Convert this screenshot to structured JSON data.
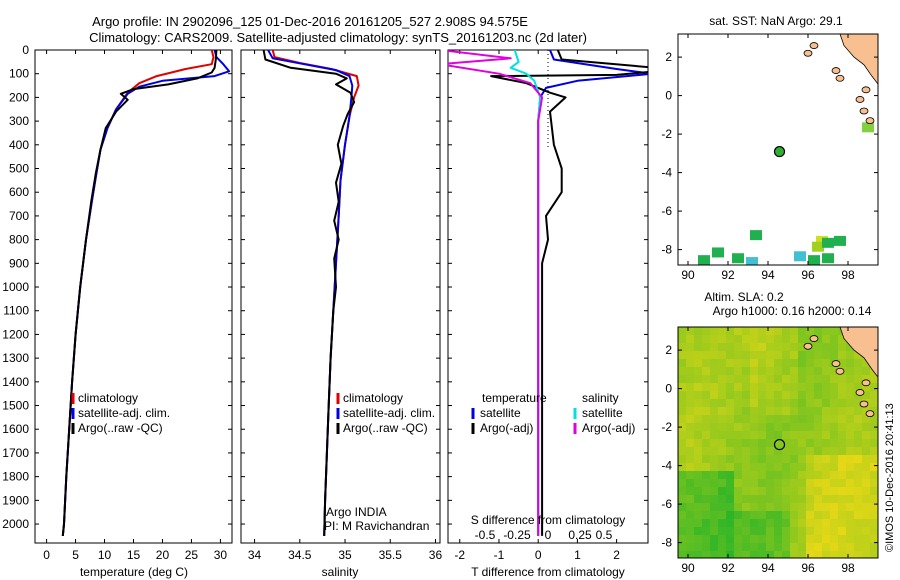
{
  "title_line1": "Argo profile: IN 2902096_125 01-Dec-2016 20161205_527 2.908S 94.575E",
  "title_line2": "Climatology: CARS2009. Satellite-adjusted climatology: synTS_20161203.nc (2d later)",
  "watermark": "©IMOS 10-Dec-2016 20:41:13",
  "colors": {
    "climatology": "#e00000",
    "satellite": "#0000e0",
    "argo": "#000000",
    "sat_s": "#00e0e0",
    "argo_s": "#e000e0",
    "land": "#f8c090"
  },
  "chart_data": [
    {
      "type": "line",
      "name": "temperature-profile",
      "xlabel": "temperature (deg C)",
      "xlim": [
        -2,
        32
      ],
      "ylim": [
        0,
        2080
      ],
      "xticks": [
        0,
        5,
        10,
        15,
        20,
        25,
        30
      ],
      "yticks": [
        0,
        100,
        200,
        300,
        400,
        500,
        600,
        700,
        800,
        900,
        1000,
        1100,
        1200,
        1300,
        1400,
        1500,
        1600,
        1700,
        1800,
        1900,
        2000
      ],
      "legend": [
        "climatology",
        "satellite-adj. clim.",
        "Argo(..raw -QC)"
      ],
      "series": [
        {
          "name": "climatology",
          "color": "#e00000",
          "points": [
            [
              28.5,
              0
            ],
            [
              28.8,
              30
            ],
            [
              28.5,
              60
            ],
            [
              24,
              80
            ],
            [
              19,
              110
            ],
            [
              16,
              140
            ],
            [
              14,
              180
            ],
            [
              12,
              250
            ],
            [
              10.5,
              330
            ],
            [
              9.3,
              420
            ],
            [
              8.6,
              520
            ],
            [
              7.8,
              640
            ],
            [
              6.8,
              800
            ],
            [
              5.8,
              1000
            ],
            [
              5,
              1200
            ],
            [
              4.4,
              1400
            ],
            [
              3.9,
              1600
            ],
            [
              3.4,
              1800
            ],
            [
              3,
              2000
            ],
            [
              2.8,
              2050
            ]
          ]
        },
        {
          "name": "satellite-adj. clim.",
          "color": "#0000e0",
          "points": [
            [
              29,
              0
            ],
            [
              29.3,
              30
            ],
            [
              30.5,
              60
            ],
            [
              31.5,
              90
            ],
            [
              29,
              110
            ],
            [
              20,
              130
            ],
            [
              16,
              155
            ],
            [
              14,
              185
            ],
            [
              12,
              250
            ],
            [
              10.5,
              330
            ],
            [
              9.3,
              420
            ],
            [
              8.6,
              520
            ],
            [
              7.8,
              640
            ],
            [
              6.8,
              800
            ],
            [
              5.8,
              1000
            ],
            [
              5,
              1200
            ],
            [
              4.4,
              1400
            ],
            [
              3.9,
              1600
            ],
            [
              3.4,
              1800
            ],
            [
              3,
              2000
            ],
            [
              2.8,
              2050
            ]
          ]
        },
        {
          "name": "Argo(..raw -QC)",
          "color": "#000000",
          "points": [
            [
              29.3,
              0
            ],
            [
              29.2,
              40
            ],
            [
              29,
              75
            ],
            [
              28.5,
              95
            ],
            [
              26,
              120
            ],
            [
              21,
              145
            ],
            [
              15,
              165
            ],
            [
              12.8,
              185
            ],
            [
              14,
              210
            ],
            [
              12,
              260
            ],
            [
              10.2,
              330
            ],
            [
              9.3,
              420
            ],
            [
              8.5,
              520
            ],
            [
              7.7,
              640
            ],
            [
              6.8,
              800
            ],
            [
              5.8,
              1000
            ],
            [
              5,
              1200
            ],
            [
              4.4,
              1400
            ],
            [
              3.9,
              1600
            ],
            [
              3.4,
              1800
            ],
            [
              3,
              2000
            ],
            [
              2.8,
              2050
            ]
          ]
        }
      ]
    },
    {
      "type": "line",
      "name": "salinity-profile",
      "xlabel": "salinity",
      "xlim": [
        33.85,
        36.05
      ],
      "ylim": [
        0,
        2080
      ],
      "xticks": [
        34,
        34.5,
        35,
        35.5,
        36
      ],
      "legend": [
        "climatology",
        "satellite-adj. clim.",
        "Argo(..raw -QC)"
      ],
      "annotation": [
        "Argo INDIA",
        "PI: M Ravichandran"
      ],
      "series": [
        {
          "name": "climatology",
          "color": "#e00000",
          "points": [
            [
              34.2,
              0
            ],
            [
              34.22,
              30
            ],
            [
              34.5,
              55
            ],
            [
              34.85,
              80
            ],
            [
              35.13,
              110
            ],
            [
              35.15,
              150
            ],
            [
              35.1,
              200
            ],
            [
              35.05,
              280
            ],
            [
              35,
              400
            ],
            [
              34.95,
              550
            ],
            [
              34.93,
              700
            ],
            [
              34.9,
              900
            ],
            [
              34.87,
              1100
            ],
            [
              34.84,
              1300
            ],
            [
              34.82,
              1500
            ],
            [
              34.8,
              1700
            ],
            [
              34.78,
              1900
            ],
            [
              34.77,
              2050
            ]
          ]
        },
        {
          "name": "satellite-adj. clim.",
          "color": "#0000e0",
          "points": [
            [
              34.15,
              0
            ],
            [
              34.2,
              35
            ],
            [
              34.55,
              60
            ],
            [
              34.9,
              85
            ],
            [
              35.05,
              110
            ],
            [
              35.08,
              150
            ],
            [
              35.07,
              200
            ],
            [
              35.05,
              280
            ],
            [
              35,
              400
            ],
            [
              34.95,
              550
            ],
            [
              34.93,
              700
            ],
            [
              34.9,
              900
            ],
            [
              34.87,
              1100
            ],
            [
              34.84,
              1300
            ],
            [
              34.82,
              1500
            ],
            [
              34.8,
              1700
            ],
            [
              34.78,
              1900
            ],
            [
              34.77,
              2050
            ]
          ]
        },
        {
          "name": "Argo(..raw -QC)",
          "color": "#000000",
          "points": [
            [
              34.1,
              0
            ],
            [
              34.12,
              40
            ],
            [
              34.4,
              75
            ],
            [
              34.9,
              100
            ],
            [
              35.02,
              120
            ],
            [
              34.9,
              145
            ],
            [
              35.06,
              180
            ],
            [
              35.1,
              220
            ],
            [
              35.03,
              270
            ],
            [
              34.98,
              320
            ],
            [
              34.92,
              400
            ],
            [
              34.96,
              480
            ],
            [
              34.9,
              560
            ],
            [
              34.93,
              640
            ],
            [
              34.88,
              720
            ],
            [
              34.93,
              800
            ],
            [
              34.88,
              880
            ],
            [
              34.9,
              1000
            ],
            [
              34.87,
              1100
            ],
            [
              34.84,
              1300
            ],
            [
              34.82,
              1500
            ],
            [
              34.8,
              1700
            ],
            [
              34.78,
              1900
            ],
            [
              34.77,
              2050
            ]
          ]
        }
      ]
    },
    {
      "type": "line",
      "name": "difference-profile",
      "xlabel": "T difference from climatology",
      "xlabel_top": "S difference from climatology",
      "xlim": [
        -2.3,
        2.8
      ],
      "ylim": [
        0,
        2080
      ],
      "xticks": [
        -2,
        -1,
        0,
        1,
        2
      ],
      "xticklabels_top": [
        "-0.5",
        "-0.25",
        "0",
        "0.25",
        "0.5"
      ],
      "legend_temperature_title": "temperature",
      "legend_salinity_title": "salinity",
      "legend_temperature": [
        "satellite",
        "Argo(-adj)"
      ],
      "legend_salinity": [
        "satellite",
        "Argo(-adj)"
      ],
      "series": [
        {
          "name": "T satellite",
          "color": "#0000e0",
          "points": [
            [
              0.3,
              0
            ],
            [
              0.4,
              40
            ],
            [
              2,
              80
            ],
            [
              2.9,
              100
            ],
            [
              1,
              130
            ],
            [
              0.2,
              160
            ],
            [
              0.05,
              200
            ],
            [
              0,
              300
            ],
            [
              0,
              2050
            ]
          ]
        },
        {
          "name": "T Argo(-adj)",
          "color": "#000000",
          "points": [
            [
              0.5,
              0
            ],
            [
              0.6,
              40
            ],
            [
              3,
              75
            ],
            [
              3,
              90
            ],
            [
              2,
              105
            ],
            [
              -1.2,
              110
            ],
            [
              -0.3,
              140
            ],
            [
              0.3,
              180
            ],
            [
              0.7,
              200
            ],
            [
              0.3,
              260
            ],
            [
              0.4,
              400
            ],
            [
              0.6,
              500
            ],
            [
              0.6,
              600
            ],
            [
              0.2,
              700
            ],
            [
              0.25,
              800
            ],
            [
              0.1,
              900
            ],
            [
              0.1,
              2050
            ]
          ]
        },
        {
          "name": "S satellite",
          "color": "#00e0e0",
          "points": [
            [
              -0.6,
              0
            ],
            [
              -0.5,
              50
            ],
            [
              -0.7,
              75
            ],
            [
              -0.3,
              100
            ],
            [
              -0.1,
              130
            ],
            [
              0.05,
              200
            ],
            [
              0,
              300
            ],
            [
              0,
              2050
            ]
          ]
        },
        {
          "name": "S Argo(-adj)",
          "color": "#e000e0",
          "points": [
            [
              -2.5,
              0
            ],
            [
              -0.7,
              35
            ],
            [
              -2.5,
              60
            ],
            [
              -1,
              100
            ],
            [
              -0.2,
              140
            ],
            [
              0.1,
              200
            ],
            [
              0,
              300
            ],
            [
              0,
              2050
            ]
          ]
        }
      ]
    },
    {
      "type": "heatmap",
      "name": "sst-map",
      "title": "sat. SST: NaN  Argo: 29.1",
      "xlim": [
        89.5,
        99.5
      ],
      "ylim": [
        -8.8,
        3.2
      ],
      "xticks": [
        90,
        92,
        94,
        96,
        98
      ],
      "yticks": [
        -8,
        -6,
        -4,
        -2,
        0,
        2
      ],
      "argo_position": [
        94.575,
        -2.908
      ]
    },
    {
      "type": "heatmap",
      "name": "sla-map",
      "title": "Altim. SLA: 0.2",
      "subtitle": "Argo h1000: 0.16  h2000: 0.14",
      "xlim": [
        89.5,
        99.5
      ],
      "ylim": [
        -8.8,
        3.2
      ],
      "xticks": [
        90,
        92,
        94,
        96,
        98
      ],
      "yticks": [
        -8,
        -6,
        -4,
        -2,
        0,
        2
      ],
      "argo_position": [
        94.575,
        -2.908
      ]
    }
  ]
}
